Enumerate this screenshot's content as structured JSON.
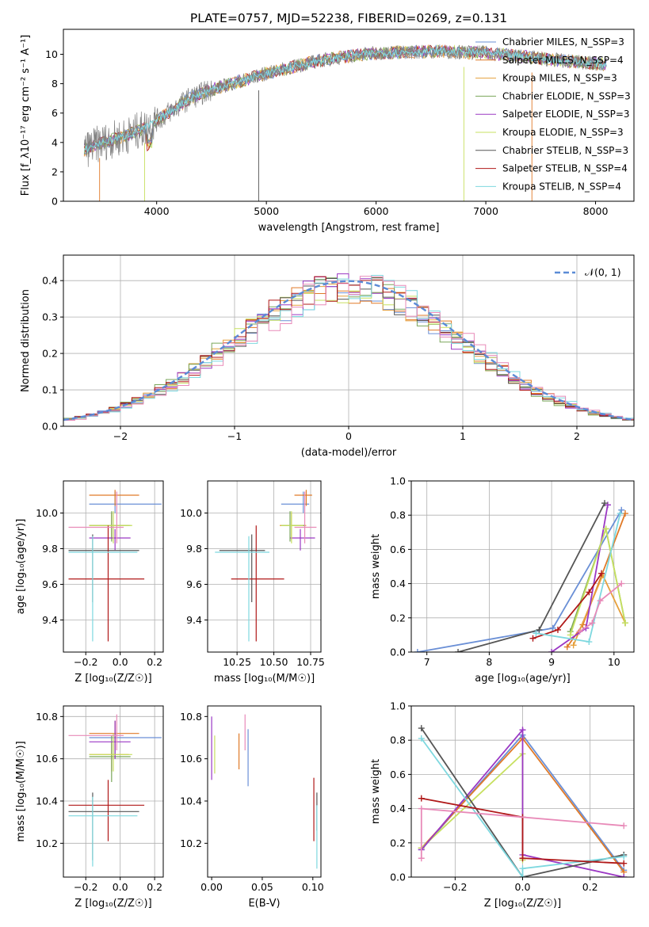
{
  "figure": {
    "title": "PLATE=0757, MJD=52238, FIBERID=0269, z=0.131"
  },
  "colors": {
    "chabrier_miles": "#6a8fd6",
    "salpeter_miles": "#e07a28",
    "kroupa_miles": "#e6a03c",
    "chabrier_elodie": "#7aa65a",
    "salpeter_elodie": "#9b38c4",
    "kroupa_elodie": "#c7e060",
    "chabrier_stelib": "#555555",
    "salpeter_stelib": "#b01818",
    "kroupa_stelib": "#7ed8df",
    "pink": "#e88ab8",
    "normal": "#5b8bd6"
  },
  "chart_data": [
    {
      "id": "spectrum",
      "type": "line",
      "xlabel": "wavelength [Angstrom, rest frame]",
      "ylabel": "Flux [f_λ10⁻¹⁷ erg cm⁻² s⁻¹ A⁻¹]",
      "xlim": [
        3150,
        8350
      ],
      "ylim": [
        0,
        11.7
      ],
      "xticks": [
        4000,
        5000,
        6000,
        7000,
        8000
      ],
      "yticks": [
        0,
        2,
        4,
        6,
        8,
        10
      ],
      "grid": false,
      "legend_placement": "right",
      "legend": [
        "Chabrier MILES, N_SSP=3",
        "Salpeter MILES, N_SSP=4",
        "Kroupa MILES, N_SSP=3",
        "Chabrier ELODIE, N_SSP=3",
        "Salpeter ELODIE, N_SSP=3",
        "Kroupa ELODIE, N_SSP=3",
        "Chabrier STELIB, N_SSP=3",
        "Salpeter STELIB, N_SSP=4",
        "Kroupa STELIB, N_SSP=4"
      ],
      "continuum": {
        "x": [
          3340,
          3500,
          3700,
          3900,
          4100,
          4300,
          4500,
          5000,
          5500,
          6000,
          6500,
          7000,
          7500,
          8100
        ],
        "y": [
          3.5,
          4.0,
          4.4,
          5.0,
          6.0,
          7.0,
          7.6,
          8.7,
          9.6,
          10.1,
          10.2,
          10.1,
          9.7,
          9.3
        ]
      }
    },
    {
      "id": "residuals",
      "type": "line",
      "xlabel": "(data-model)/error",
      "ylabel": "Normed distribution",
      "xlim": [
        -2.5,
        2.5
      ],
      "ylim": [
        0,
        0.47
      ],
      "xticks": [
        -2,
        -1,
        0,
        1,
        2
      ],
      "yticks": [
        0.0,
        0.1,
        0.2,
        0.3,
        0.4
      ],
      "grid": true,
      "legend_placement": "top-right",
      "legend": [
        "𝒩(0, 1)"
      ]
    },
    {
      "id": "age_vs_z",
      "type": "scatter",
      "xlabel": "Z [log₁₀(Z/Z☉)]",
      "ylabel": "age  [log₁₀(age/yr)]",
      "xlim": [
        -0.33,
        0.25
      ],
      "ylim": [
        9.22,
        10.18
      ],
      "xticks": [
        -0.2,
        0.0,
        0.2
      ],
      "yticks": [
        9.4,
        9.6,
        9.8,
        10.0
      ],
      "grid": true,
      "points": [
        {
          "c": "chabrier_miles",
          "x": -0.03,
          "xerr": [
            0.15,
            0.27
          ],
          "y": 10.05,
          "yerr": [
            0.05,
            0.07
          ]
        },
        {
          "c": "salpeter_miles",
          "x": -0.03,
          "xerr": [
            0.15,
            0.14
          ],
          "y": 10.1,
          "yerr": [
            0.06,
            0.03
          ]
        },
        {
          "c": "kroupa_miles",
          "x": -0.05,
          "xerr": [
            0.13,
            0.1
          ],
          "y": 9.93,
          "yerr": [
            0.08,
            0.07
          ]
        },
        {
          "c": "chabrier_elodie",
          "x": -0.05,
          "xerr": [
            0.13,
            0.11
          ],
          "y": 9.93,
          "yerr": [
            0.09,
            0.08
          ]
        },
        {
          "c": "salpeter_elodie",
          "x": -0.03,
          "xerr": [
            0.15,
            0.09
          ],
          "y": 9.86,
          "yerr": [
            0.07,
            0.05
          ]
        },
        {
          "c": "kroupa_elodie",
          "x": -0.04,
          "xerr": [
            0.14,
            0.11
          ],
          "y": 9.93,
          "yerr": [
            0.1,
            0.08
          ]
        },
        {
          "c": "chabrier_stelib",
          "x": -0.16,
          "xerr": [
            0.14,
            0.27
          ],
          "y": 9.79,
          "yerr": [
            0.29,
            0.09
          ]
        },
        {
          "c": "salpeter_stelib",
          "x": -0.07,
          "xerr": [
            0.23,
            0.21
          ],
          "y": 9.63,
          "yerr": [
            0.35,
            0.3
          ]
        },
        {
          "c": "kroupa_stelib",
          "x": -0.16,
          "xerr": [
            0.14,
            0.26
          ],
          "y": 9.78,
          "yerr": [
            0.5,
            0.09
          ]
        },
        {
          "c": "pink",
          "x": -0.02,
          "xerr": [
            0.28,
            0.04
          ],
          "y": 9.92,
          "yerr": [
            0.09,
            0.2
          ]
        }
      ]
    },
    {
      "id": "age_vs_mass",
      "type": "scatter",
      "xlabel": "mass [log₁₀(M/M☉)]",
      "ylabel": "",
      "xlim": [
        10.05,
        10.82
      ],
      "ylim": [
        9.22,
        10.18
      ],
      "xticks": [
        10.25,
        10.5,
        10.75
      ],
      "yticks": [
        9.4,
        9.6,
        9.8,
        10.0
      ],
      "grid": true,
      "points": [
        {
          "c": "chabrier_miles",
          "x": 10.7,
          "xerr": [
            0.15,
            0.04
          ],
          "y": 10.05,
          "yerr": [
            0.05,
            0.07
          ]
        },
        {
          "c": "salpeter_miles",
          "x": 10.72,
          "xerr": [
            0.08,
            0.04
          ],
          "y": 10.1,
          "yerr": [
            0.06,
            0.03
          ]
        },
        {
          "c": "kroupa_miles",
          "x": 10.62,
          "xerr": [
            0.08,
            0.1
          ],
          "y": 9.93,
          "yerr": [
            0.08,
            0.07
          ]
        },
        {
          "c": "chabrier_elodie",
          "x": 10.61,
          "xerr": [
            0.06,
            0.1
          ],
          "y": 9.93,
          "yerr": [
            0.09,
            0.08
          ]
        },
        {
          "c": "salpeter_elodie",
          "x": 10.68,
          "xerr": [
            0.07,
            0.1
          ],
          "y": 9.86,
          "yerr": [
            0.07,
            0.05
          ]
        },
        {
          "c": "kroupa_elodie",
          "x": 10.62,
          "xerr": [
            0.07,
            0.08
          ],
          "y": 9.93,
          "yerr": [
            0.1,
            0.08
          ]
        },
        {
          "c": "chabrier_stelib",
          "x": 10.35,
          "xerr": [
            0.22,
            0.09
          ],
          "y": 9.79,
          "yerr": [
            0.29,
            0.09
          ]
        },
        {
          "c": "salpeter_stelib",
          "x": 10.38,
          "xerr": [
            0.17,
            0.19
          ],
          "y": 9.63,
          "yerr": [
            0.35,
            0.3
          ]
        },
        {
          "c": "kroupa_stelib",
          "x": 10.33,
          "xerr": [
            0.23,
            0.14
          ],
          "y": 9.78,
          "yerr": [
            0.5,
            0.09
          ]
        },
        {
          "c": "pink",
          "x": 10.71,
          "xerr": [
            0.07,
            0.08
          ],
          "y": 9.92,
          "yerr": [
            0.09,
            0.2
          ]
        }
      ]
    },
    {
      "id": "weight_vs_age",
      "type": "line",
      "xlabel": "age  [log₁₀(age/yr)]",
      "ylabel": "mass weight",
      "xlim": [
        6.75,
        10.32
      ],
      "ylim": [
        0,
        1.0
      ],
      "xticks": [
        7,
        8,
        9,
        10
      ],
      "yticks": [
        0.0,
        0.2,
        0.4,
        0.6,
        0.8,
        1.0
      ],
      "grid": true,
      "series": [
        {
          "c": "chabrier_miles",
          "x": [
            6.85,
            9.02,
            10.12
          ],
          "y": [
            0.0,
            0.14,
            0.83
          ]
        },
        {
          "c": "salpeter_miles",
          "x": [
            9.25,
            9.5,
            10.18
          ],
          "y": [
            0.03,
            0.16,
            0.81
          ]
        },
        {
          "c": "kroupa_miles",
          "x": [
            9.35,
            9.82,
            10.18
          ],
          "y": [
            0.04,
            0.45,
            0.17
          ]
        },
        {
          "c": "chabrier_elodie",
          "x": [
            9.3,
            9.87,
            10.18
          ],
          "y": [
            0.12,
            0.72,
            0.17
          ]
        },
        {
          "c": "salpeter_elodie",
          "x": [
            9.0,
            9.55,
            9.9
          ],
          "y": [
            0.0,
            0.14,
            0.86
          ]
        },
        {
          "c": "kroupa_elodie",
          "x": [
            9.3,
            9.87,
            10.18
          ],
          "y": [
            0.1,
            0.72,
            0.17
          ]
        },
        {
          "c": "chabrier_stelib",
          "x": [
            7.5,
            8.8,
            9.85
          ],
          "y": [
            0.0,
            0.13,
            0.87
          ]
        },
        {
          "c": "salpeter_stelib",
          "x": [
            8.7,
            9.1,
            9.6,
            9.8
          ],
          "y": [
            0.08,
            0.13,
            0.35,
            0.46
          ]
        },
        {
          "c": "kroupa_stelib",
          "x": [
            8.75,
            9.6,
            10.1
          ],
          "y": [
            0.11,
            0.06,
            0.81
          ]
        },
        {
          "c": "pink",
          "x": [
            9.45,
            9.65,
            9.78,
            10.12
          ],
          "y": [
            0.12,
            0.17,
            0.3,
            0.4
          ]
        }
      ]
    },
    {
      "id": "mass_vs_z",
      "type": "scatter",
      "xlabel": "Z [log₁₀(Z/Z☉)]",
      "ylabel": "mass [log₁₀(M/M☉)]",
      "xlim": [
        -0.33,
        0.25
      ],
      "ylim": [
        10.04,
        10.85
      ],
      "xticks": [
        -0.2,
        0.0,
        0.2
      ],
      "yticks": [
        10.2,
        10.4,
        10.6,
        10.8
      ],
      "grid": true,
      "points": [
        {
          "c": "chabrier_miles",
          "x": -0.03,
          "xerr": [
            0.15,
            0.27
          ],
          "y": 10.7,
          "yerr": [
            0.1,
            0.08
          ]
        },
        {
          "c": "salpeter_miles",
          "x": -0.03,
          "xerr": [
            0.15,
            0.14
          ],
          "y": 10.72,
          "yerr": [
            0.08,
            0.06
          ]
        },
        {
          "c": "kroupa_miles",
          "x": -0.05,
          "xerr": [
            0.13,
            0.1
          ],
          "y": 10.62,
          "yerr": [
            0.08,
            0.06
          ]
        },
        {
          "c": "chabrier_elodie",
          "x": -0.05,
          "xerr": [
            0.13,
            0.11
          ],
          "y": 10.61,
          "yerr": [
            0.12,
            0.1
          ]
        },
        {
          "c": "salpeter_elodie",
          "x": -0.03,
          "xerr": [
            0.15,
            0.09
          ],
          "y": 10.68,
          "yerr": [
            0.08,
            0.1
          ]
        },
        {
          "c": "kroupa_elodie",
          "x": -0.04,
          "xerr": [
            0.14,
            0.11
          ],
          "y": 10.62,
          "yerr": [
            0.08,
            0.1
          ]
        },
        {
          "c": "chabrier_stelib",
          "x": -0.16,
          "xerr": [
            0.14,
            0.27
          ],
          "y": 10.35,
          "yerr": [
            0.23,
            0.09
          ]
        },
        {
          "c": "salpeter_stelib",
          "x": -0.07,
          "xerr": [
            0.23,
            0.21
          ],
          "y": 10.38,
          "yerr": [
            0.17,
            0.12
          ]
        },
        {
          "c": "kroupa_stelib",
          "x": -0.16,
          "xerr": [
            0.14,
            0.26
          ],
          "y": 10.33,
          "yerr": [
            0.24,
            0.09
          ]
        },
        {
          "c": "pink",
          "x": -0.02,
          "xerr": [
            0.28,
            0.04
          ],
          "y": 10.71,
          "yerr": [
            0.07,
            0.1
          ]
        }
      ]
    },
    {
      "id": "mass_vs_ebv",
      "type": "scatter",
      "xlabel": "E(B-V)",
      "ylabel": "",
      "xlim": [
        -0.004,
        0.108
      ],
      "ylim": [
        10.04,
        10.85
      ],
      "xticks": [
        0.0,
        0.05,
        0.1
      ],
      "yticks": [
        10.2,
        10.4,
        10.6,
        10.8
      ],
      "grid": false,
      "bars": [
        {
          "c": "salpeter_elodie",
          "x": 0.0,
          "ylo": 10.5,
          "yhi": 10.8
        },
        {
          "c": "kroupa_elodie",
          "x": 0.003,
          "ylo": 10.53,
          "yhi": 10.71
        },
        {
          "c": "salpeter_miles",
          "x": 0.027,
          "ylo": 10.55,
          "yhi": 10.72
        },
        {
          "c": "pink",
          "x": 0.033,
          "ylo": 10.64,
          "yhi": 10.81
        },
        {
          "c": "chabrier_miles",
          "x": 0.036,
          "ylo": 10.47,
          "yhi": 10.74
        },
        {
          "c": "salpeter_stelib",
          "x": 0.101,
          "ylo": 10.21,
          "yhi": 10.51
        },
        {
          "c": "chabrier_stelib",
          "x": 0.104,
          "ylo": 10.26,
          "yhi": 10.44
        },
        {
          "c": "kroupa_stelib",
          "x": 0.104,
          "ylo": 10.08,
          "yhi": 10.38
        }
      ]
    },
    {
      "id": "weight_vs_z",
      "type": "line",
      "xlabel": "Z [log₁₀(Z/Z☉)]",
      "ylabel": "mass weight",
      "xlim": [
        -0.33,
        0.33
      ],
      "ylim": [
        0,
        1.0
      ],
      "xticks": [
        -0.2,
        0.0,
        0.2
      ],
      "yticks": [
        0.0,
        0.2,
        0.4,
        0.6,
        0.8,
        1.0
      ],
      "grid": true,
      "series": [
        {
          "c": "chabrier_miles",
          "x": [
            -0.3,
            0.0,
            0.3
          ],
          "y": [
            0.16,
            0.83,
            0.04
          ]
        },
        {
          "c": "salpeter_miles",
          "x": [
            -0.3,
            0.0,
            0.3
          ],
          "y": [
            0.17,
            0.81,
            0.03
          ]
        },
        {
          "c": "kroupa_elodie",
          "x": [
            -0.3,
            0.0,
            0.0
          ],
          "y": [
            0.17,
            0.72,
            0.1
          ]
        },
        {
          "c": "salpeter_elodie",
          "x": [
            -0.3,
            0.0,
            0.0,
            0.3
          ],
          "y": [
            0.16,
            0.86,
            0.13,
            0.0
          ]
        },
        {
          "c": "chabrier_stelib",
          "x": [
            -0.3,
            0.0,
            0.3
          ],
          "y": [
            0.87,
            0.0,
            0.13
          ]
        },
        {
          "c": "kroupa_stelib",
          "x": [
            -0.3,
            0.0,
            0.0,
            0.3
          ],
          "y": [
            0.81,
            0.0,
            0.05,
            0.12
          ]
        },
        {
          "c": "salpeter_stelib",
          "x": [
            -0.3,
            0.0,
            0.0,
            0.3
          ],
          "y": [
            0.46,
            0.35,
            0.11,
            0.08
          ]
        },
        {
          "c": "pink",
          "x": [
            -0.3,
            -0.3,
            0.3
          ],
          "y": [
            0.11,
            0.4,
            0.3
          ]
        }
      ]
    }
  ]
}
